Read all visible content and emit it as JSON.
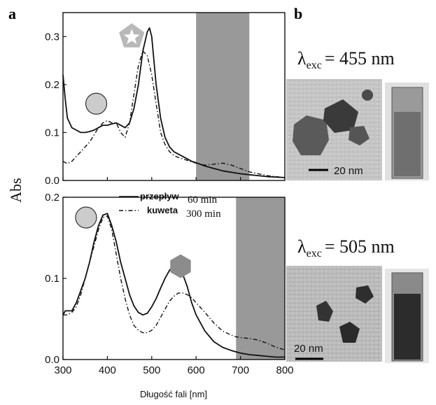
{
  "panels": {
    "a_label": "a",
    "b_label": "b"
  },
  "shared_axes": {
    "ylabel": "Abs",
    "xlabel": "Długość fali [nm]",
    "x_ticks": [
      "300",
      "400",
      "500",
      "600",
      "700",
      "800"
    ]
  },
  "legend": {
    "solid_label": "przepływ",
    "solid_time": "60 min",
    "dashdot_label": "kuweta",
    "dashdot_time": "300 min"
  },
  "tem": {
    "top": {
      "lambda_text": "λexc = 455 nm",
      "lambda_symbol": "λ",
      "lambda_sub": "exc",
      "lambda_value": "= 455 nm",
      "scale_bar": "20 nm"
    },
    "bottom": {
      "lambda_text": "λexc = 505 nm",
      "lambda_symbol": "λ",
      "lambda_sub": "exc",
      "lambda_value": "= 505 nm",
      "scale_bar": "20 nm"
    }
  },
  "chart_data": [
    {
      "type": "line",
      "panel": "a-top",
      "xlim": [
        300,
        800
      ],
      "ylim": [
        0,
        0.35
      ],
      "yticks": [
        "0.0",
        "0.1",
        "0.2",
        "0.3"
      ],
      "ytick_values": [
        0.0,
        0.1,
        0.2,
        0.3
      ],
      "shaded_band_x": [
        600,
        720
      ],
      "markers": [
        {
          "shape": "circle",
          "x": 375,
          "y": 0.16
        },
        {
          "shape": "pentagon-star",
          "x": 455,
          "y": 0.3
        }
      ],
      "series": [
        {
          "style": "solid",
          "x": [
            300,
            305,
            310,
            320,
            330,
            340,
            350,
            360,
            370,
            380,
            390,
            400,
            410,
            420,
            430,
            440,
            450,
            460,
            470,
            480,
            490,
            495,
            500,
            510,
            520,
            530,
            540,
            550,
            560,
            570,
            580,
            590,
            600,
            620,
            640,
            660,
            680,
            700,
            720,
            740,
            760,
            780,
            800
          ],
          "y": [
            0.22,
            0.17,
            0.13,
            0.11,
            0.105,
            0.1,
            0.1,
            0.102,
            0.105,
            0.11,
            0.115,
            0.115,
            0.118,
            0.12,
            0.115,
            0.11,
            0.12,
            0.15,
            0.2,
            0.27,
            0.31,
            0.318,
            0.3,
            0.2,
            0.13,
            0.09,
            0.07,
            0.06,
            0.055,
            0.05,
            0.045,
            0.04,
            0.037,
            0.03,
            0.025,
            0.02,
            0.017,
            0.014,
            0.012,
            0.01,
            0.008,
            0.007,
            0.006
          ]
        },
        {
          "style": "dash-dot",
          "x": [
            300,
            310,
            320,
            330,
            340,
            350,
            360,
            370,
            380,
            390,
            400,
            410,
            420,
            430,
            440,
            450,
            460,
            470,
            480,
            490,
            500,
            510,
            520,
            530,
            540,
            550,
            560,
            580,
            600,
            620,
            640,
            660,
            680,
            700,
            720,
            740,
            760,
            780,
            800
          ],
          "y": [
            0.04,
            0.035,
            0.04,
            0.05,
            0.06,
            0.07,
            0.08,
            0.095,
            0.11,
            0.12,
            0.125,
            0.12,
            0.12,
            0.1,
            0.09,
            0.12,
            0.18,
            0.24,
            0.27,
            0.26,
            0.22,
            0.16,
            0.1,
            0.075,
            0.06,
            0.052,
            0.048,
            0.042,
            0.036,
            0.032,
            0.034,
            0.036,
            0.032,
            0.025,
            0.018,
            0.014,
            0.01,
            0.008,
            0.006
          ]
        }
      ]
    },
    {
      "type": "line",
      "panel": "a-bottom",
      "xlim": [
        300,
        800
      ],
      "ylim": [
        0,
        0.2
      ],
      "yticks": [
        "0.0",
        "0.1",
        "0.2"
      ],
      "ytick_values": [
        0.0,
        0.1,
        0.2
      ],
      "shaded_band_x": [
        690,
        800
      ],
      "markers": [
        {
          "shape": "circle",
          "x": 352,
          "y": 0.175
        },
        {
          "shape": "hexagon",
          "x": 565,
          "y": 0.115
        }
      ],
      "series": [
        {
          "style": "solid",
          "x": [
            300,
            305,
            310,
            320,
            330,
            340,
            350,
            360,
            370,
            380,
            390,
            400,
            410,
            420,
            430,
            440,
            450,
            460,
            470,
            480,
            490,
            500,
            510,
            520,
            530,
            540,
            550,
            560,
            570,
            580,
            590,
            600,
            620,
            640,
            660,
            680,
            700,
            720,
            740,
            760,
            780,
            800
          ],
          "y": [
            0.055,
            0.06,
            0.06,
            0.06,
            0.07,
            0.085,
            0.1,
            0.12,
            0.145,
            0.165,
            0.178,
            0.18,
            0.165,
            0.145,
            0.12,
            0.1,
            0.08,
            0.066,
            0.058,
            0.055,
            0.057,
            0.065,
            0.075,
            0.088,
            0.1,
            0.11,
            0.116,
            0.115,
            0.105,
            0.09,
            0.07,
            0.055,
            0.035,
            0.022,
            0.015,
            0.011,
            0.008,
            0.006,
            0.005,
            0.004,
            0.003,
            0.003
          ]
        },
        {
          "style": "dash-dot",
          "x": [
            300,
            310,
            320,
            330,
            340,
            350,
            360,
            370,
            380,
            390,
            400,
            410,
            420,
            430,
            440,
            450,
            460,
            470,
            480,
            490,
            500,
            510,
            520,
            530,
            540,
            550,
            560,
            570,
            580,
            590,
            600,
            620,
            640,
            660,
            680,
            690,
            700,
            720,
            740,
            760,
            780,
            800
          ],
          "y": [
            0.055,
            0.055,
            0.058,
            0.065,
            0.08,
            0.1,
            0.12,
            0.14,
            0.16,
            0.175,
            0.177,
            0.16,
            0.13,
            0.1,
            0.075,
            0.055,
            0.042,
            0.036,
            0.033,
            0.033,
            0.036,
            0.042,
            0.052,
            0.062,
            0.072,
            0.078,
            0.082,
            0.082,
            0.08,
            0.076,
            0.07,
            0.058,
            0.045,
            0.035,
            0.03,
            0.028,
            0.027,
            0.026,
            0.024,
            0.02,
            0.015,
            0.012
          ]
        }
      ]
    }
  ],
  "colors": {
    "shade_band": "#999999",
    "marker_fill": "#cccccc",
    "hexagon_fill": "#8c8c8c",
    "pentagon_fill": "#b8b8b8",
    "line": "#111111"
  }
}
